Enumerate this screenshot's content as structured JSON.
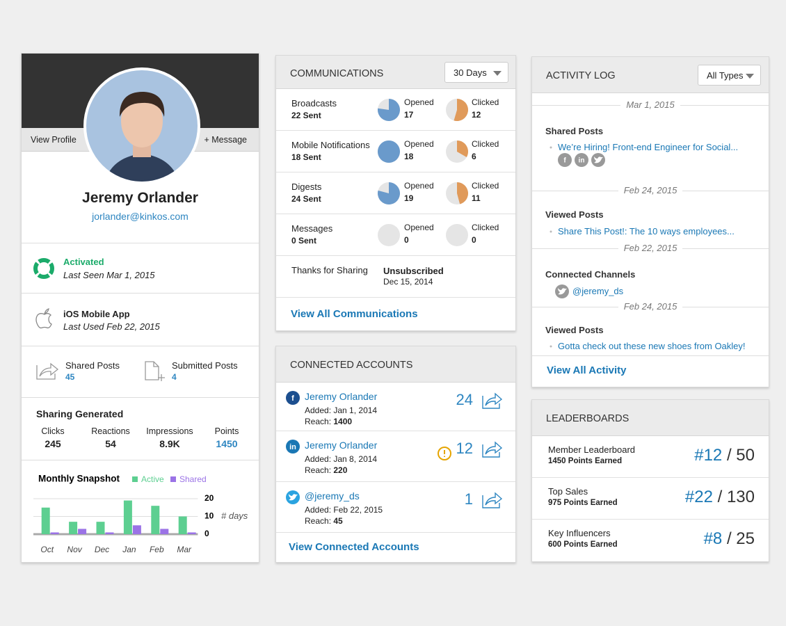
{
  "profile": {
    "view_profile": "View Profile",
    "message": "+ Message",
    "name": "Jeremy Orlander",
    "email": "jorlander@kinkos.com",
    "status": {
      "label": "Activated",
      "detail": "Last Seen Mar 1, 2015"
    },
    "app": {
      "label": "iOS Mobile App",
      "detail": "Last Used Feb 22, 2015"
    },
    "posts": [
      {
        "label": "Shared Posts",
        "value": 45
      },
      {
        "label": "Submitted Posts",
        "value": 4
      }
    ],
    "sharing": {
      "title": "Sharing Generated",
      "stats": [
        {
          "label": "Clicks",
          "value": 245
        },
        {
          "label": "Reactions",
          "value": 54
        },
        {
          "label": "Impressions",
          "value": "8.9K"
        },
        {
          "label": "Points",
          "value": 1450
        }
      ]
    }
  },
  "chart_data": {
    "type": "bar",
    "title": "Monthly Snapshot",
    "categories": [
      "Oct",
      "Nov",
      "Dec",
      "Jan",
      "Feb",
      "Mar"
    ],
    "series": [
      {
        "name": "Active",
        "color": "#5dcf91",
        "values": [
          15,
          7,
          7,
          19,
          16,
          10
        ]
      },
      {
        "name": "Shared",
        "color": "#9b73e6",
        "values": [
          1,
          3,
          1,
          5,
          3,
          1
        ]
      }
    ],
    "ylim": [
      0,
      20
    ],
    "yticks": [
      0,
      10,
      20
    ],
    "y_label": "# days",
    "grid": true
  },
  "communications": {
    "title": "COMMUNICATIONS",
    "filter": "30 Days",
    "opened_label": "Opened",
    "clicked_label": "Clicked",
    "opened_color": "#6a9acb",
    "clicked_color": "#e09a5a",
    "rows": [
      {
        "name": "Broadcasts",
        "sent": {
          "value": 22,
          "label": "22 Sent"
        },
        "opened": 17,
        "clicked": 12
      },
      {
        "name": "Mobile Notifications",
        "sent": {
          "value": 18,
          "label": "18 Sent"
        },
        "opened": 18,
        "clicked": 6
      },
      {
        "name": "Digests",
        "sent": {
          "value": 24,
          "label": "24 Sent"
        },
        "opened": 19,
        "clicked": 11
      },
      {
        "name": "Messages",
        "sent": {
          "value": 0,
          "label": "0 Sent"
        },
        "opened": 0,
        "clicked": 0
      }
    ],
    "unsub": {
      "name": "Thanks for Sharing",
      "status": "Unsubscribed",
      "date": "Dec 15, 2014"
    },
    "link": "View All Communications"
  },
  "accounts": {
    "title": "CONNECTED ACCOUNTS",
    "reach_label": "Reach:",
    "rows": [
      {
        "icon": "f",
        "name": "Jeremy Orlander",
        "added": "Added: Jan 1, 2014",
        "reach": 1400,
        "count": 24
      },
      {
        "icon": "in",
        "name": "Jeremy Orlander",
        "added": "Added: Jan 8, 2014",
        "reach": 220,
        "count": 12
      },
      {
        "name": "@jeremy_ds",
        "added": "Added: Feb 22, 2015",
        "reach": 45,
        "count": 1
      }
    ],
    "link": "View Connected Accounts"
  },
  "activity": {
    "title": "ACTIVITY LOG",
    "filter": "All Types",
    "shares": [
      "f",
      "in"
    ],
    "entries": [
      {
        "date": "Mar 1, 2015",
        "type": "Shared Posts",
        "item": "We’re Hiring!  Front-end Engineer for Social..."
      },
      {
        "date": "Feb 24, 2015",
        "type": "Viewed Posts",
        "item": "Share This Post!: The 10 ways employees..."
      },
      {
        "date": "Feb 22, 2015",
        "type": "Connected Channels",
        "item": "@jeremy_ds"
      },
      {
        "date": "Feb 24, 2015",
        "type": "Viewed Posts",
        "item": "Gotta check out these new shoes from Oakley!"
      }
    ],
    "link": "View All Activity"
  },
  "leaderboards": {
    "title": "LEADERBOARDS",
    "rows": [
      {
        "name": "Member Leaderboard",
        "points": "1450 Points Earned",
        "rank": "#12",
        "total": 50
      },
      {
        "name": "Top Sales",
        "points": "975 Points Earned",
        "rank": "#22",
        "total": 130
      },
      {
        "name": "Key Influencers",
        "points": "600 Points Earned",
        "rank": "#8",
        "total": 25
      }
    ]
  }
}
